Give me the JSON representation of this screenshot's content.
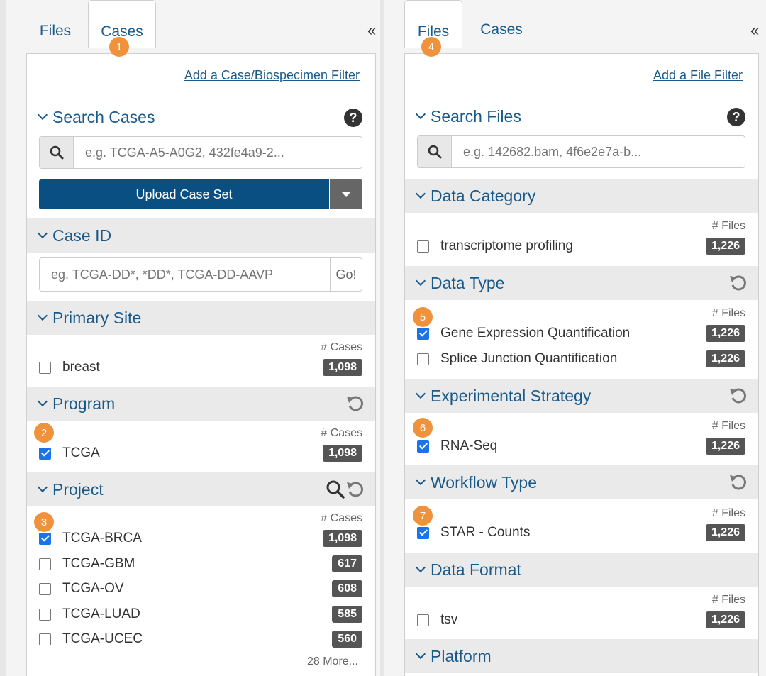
{
  "left": {
    "tabs": [
      "Files",
      "Cases"
    ],
    "collapse": "«",
    "add_filter": "Add a Case/Biospecimen Filter",
    "search_title": "Search Cases",
    "help": "?",
    "search_placeholder": "e.g. TCGA-A5-A0G2, 432fe4a9-2...",
    "upload_label": "Upload Case Set",
    "case_id_title": "Case ID",
    "case_id_placeholder": "eg. TCGA-DD*, *DD*, TCGA-DD-AAVP",
    "go_label": "Go!",
    "count_header": "# Cases",
    "primary_site": {
      "title": "Primary Site",
      "items": [
        {
          "label": "breast",
          "count": "1,098",
          "checked": false
        }
      ]
    },
    "program": {
      "title": "Program",
      "items": [
        {
          "label": "TCGA",
          "count": "1,098",
          "checked": true
        }
      ]
    },
    "project": {
      "title": "Project",
      "items": [
        {
          "label": "TCGA-BRCA",
          "count": "1,098",
          "checked": true
        },
        {
          "label": "TCGA-GBM",
          "count": "617",
          "checked": false
        },
        {
          "label": "TCGA-OV",
          "count": "608",
          "checked": false
        },
        {
          "label": "TCGA-LUAD",
          "count": "585",
          "checked": false
        },
        {
          "label": "TCGA-UCEC",
          "count": "560",
          "checked": false
        }
      ],
      "more": "28 More..."
    }
  },
  "right": {
    "tabs": [
      "Files",
      "Cases"
    ],
    "collapse": "«",
    "add_filter": "Add a File Filter",
    "search_title": "Search Files",
    "help": "?",
    "search_placeholder": "e.g. 142682.bam, 4f6e2e7a-b...",
    "count_header": "# Files",
    "data_category": {
      "title": "Data Category",
      "items": [
        {
          "label": "transcriptome profiling",
          "count": "1,226",
          "checked": false
        }
      ]
    },
    "data_type": {
      "title": "Data Type",
      "items": [
        {
          "label": "Gene Expression Quantification",
          "count": "1,226",
          "checked": true
        },
        {
          "label": "Splice Junction Quantification",
          "count": "1,226",
          "checked": false
        }
      ]
    },
    "experimental_strategy": {
      "title": "Experimental Strategy",
      "items": [
        {
          "label": "RNA-Seq",
          "count": "1,226",
          "checked": true
        }
      ]
    },
    "workflow_type": {
      "title": "Workflow Type",
      "items": [
        {
          "label": "STAR - Counts",
          "count": "1,226",
          "checked": true
        }
      ]
    },
    "data_format": {
      "title": "Data Format",
      "items": [
        {
          "label": "tsv",
          "count": "1,226",
          "checked": false
        }
      ]
    },
    "platform": {
      "title": "Platform"
    }
  },
  "badges": [
    "1",
    "2",
    "3",
    "4",
    "5",
    "6",
    "7"
  ],
  "colors": {
    "accent": "#1a5a8a",
    "badge": "#f0923b",
    "button": "#0a4f82",
    "count_bg": "#555555",
    "checkbox_on": "#1a73e8"
  }
}
